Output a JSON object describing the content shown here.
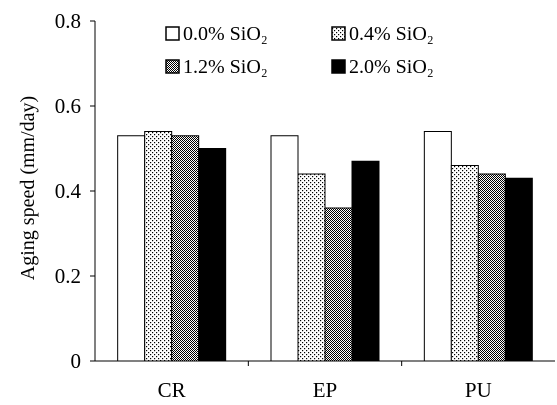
{
  "chart_data": {
    "type": "bar",
    "title": "",
    "xlabel": "",
    "ylabel": "Aging speed (mm/day)",
    "ylim": [
      0,
      0.8
    ],
    "yticks": [
      "0",
      "0.2",
      "0.4",
      "0.6",
      "0.8"
    ],
    "categories": [
      "CR",
      "EP",
      "PU"
    ],
    "grid": false,
    "legend_position": "top",
    "series": [
      {
        "name": "0.0% SiO₂",
        "pattern": "white",
        "values": [
          0.53,
          0.53,
          0.54
        ]
      },
      {
        "name": "0.4% SiO₂",
        "pattern": "dots",
        "values": [
          0.54,
          0.44,
          0.46
        ]
      },
      {
        "name": "1.2% SiO₂",
        "pattern": "checker",
        "values": [
          0.53,
          0.36,
          0.44
        ]
      },
      {
        "name": "2.0% SiO₂",
        "pattern": "black",
        "values": [
          0.5,
          0.47,
          0.43
        ]
      }
    ]
  }
}
